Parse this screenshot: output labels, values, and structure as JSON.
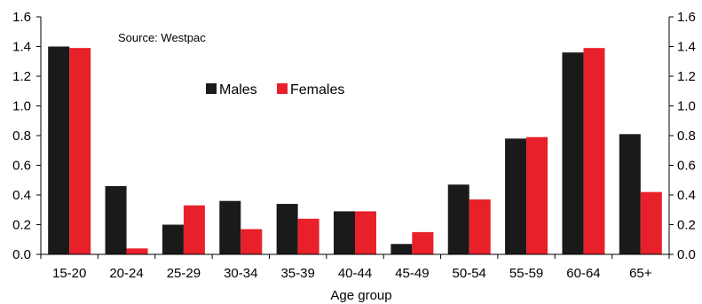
{
  "chart_data": {
    "type": "bar",
    "title": "",
    "xlabel": "Age group",
    "ylabel": "",
    "annotation": "Source:  Westpac",
    "categories": [
      "15-20",
      "20-24",
      "25-29",
      "30-34",
      "35-39",
      "40-44",
      "45-49",
      "50-54",
      "55-59",
      "60-64",
      "65+"
    ],
    "series": [
      {
        "name": "Males",
        "color": "#1a1a1a",
        "values": [
          1.4,
          0.46,
          0.2,
          0.36,
          0.34,
          0.29,
          0.07,
          0.47,
          0.78,
          1.36,
          0.81
        ]
      },
      {
        "name": "Females",
        "color": "#e8202a",
        "values": [
          1.39,
          0.04,
          0.33,
          0.17,
          0.24,
          0.29,
          0.15,
          0.37,
          0.79,
          1.39,
          0.42
        ]
      }
    ],
    "ylim": [
      0,
      1.6
    ],
    "yticks": [
      "0.0",
      "0.2",
      "0.4",
      "0.6",
      "0.8",
      "1.0",
      "1.2",
      "1.4",
      "1.6"
    ],
    "right_axis": true,
    "grid": false,
    "legend_position": "top-center"
  }
}
